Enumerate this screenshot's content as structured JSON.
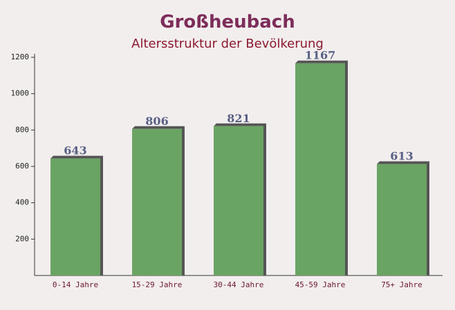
{
  "chart_data": {
    "type": "bar",
    "title": "Großheubach",
    "subtitle": "Altersstruktur der Bevölkerung",
    "categories": [
      "0-14 Jahre",
      "15-29 Jahre",
      "30-44 Jahre",
      "45-59 Jahre",
      "75+ Jahre"
    ],
    "values": [
      643,
      806,
      821,
      1167,
      613
    ],
    "color": "#6aa463",
    "ylim": [
      0,
      1200
    ],
    "yticks": [
      200,
      400,
      600,
      800,
      1000,
      1200
    ]
  }
}
